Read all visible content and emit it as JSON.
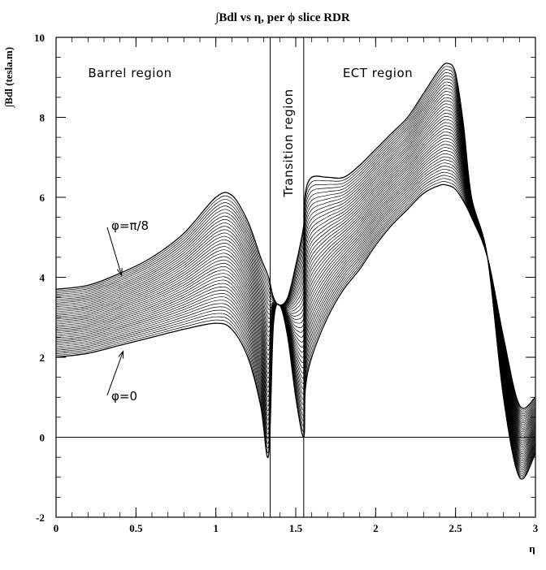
{
  "chart_data": {
    "type": "line",
    "title": "∫Bdl vs η, per ϕ slice RDR",
    "xlabel": "η",
    "ylabel": "∫Bdl (tesla.m)",
    "xlim": [
      0,
      3
    ],
    "ylim": [
      -2,
      10
    ],
    "xticks": [
      "0",
      "0.5",
      "1",
      "1.5",
      "2",
      "2.5",
      "3"
    ],
    "yticks": [
      "-2",
      "0",
      "2",
      "4",
      "6",
      "8",
      "10"
    ],
    "region_boundaries": [
      1.34,
      1.55
    ],
    "region_labels": [
      "Barrel region",
      "Transition region",
      "ECT region"
    ],
    "n_curves": 40,
    "x": [
      0,
      0.2,
      0.4,
      0.6,
      0.8,
      1.0,
      1.1,
      1.2,
      1.28,
      1.33,
      1.36,
      1.4,
      1.45,
      1.5,
      1.55,
      1.56,
      1.6,
      1.7,
      1.8,
      1.9,
      2.0,
      2.1,
      2.2,
      2.3,
      2.4,
      2.45,
      2.5,
      2.55,
      2.6,
      2.7,
      2.8,
      2.9,
      3.0
    ],
    "series": [
      {
        "name": "φ=π/8",
        "values": [
          3.7,
          3.8,
          4.1,
          4.5,
          5.1,
          6.0,
          6.05,
          5.4,
          4.5,
          4.0,
          3.5,
          3.3,
          3.5,
          4.3,
          5.3,
          6.1,
          6.5,
          6.5,
          6.5,
          6.8,
          7.2,
          7.6,
          8.0,
          8.6,
          9.2,
          9.35,
          9.1,
          7.8,
          6.0,
          4.5,
          1.0,
          -1.0,
          -0.4
        ]
      },
      {
        "name": "φ=0",
        "values": [
          2.0,
          2.1,
          2.3,
          2.5,
          2.7,
          2.85,
          2.7,
          2.0,
          0.8,
          -0.45,
          2.8,
          3.3,
          2.5,
          1.0,
          0.0,
          1.2,
          2.0,
          3.0,
          3.7,
          4.2,
          4.8,
          5.3,
          5.7,
          6.1,
          6.3,
          6.3,
          6.2,
          5.9,
          5.5,
          4.5,
          2.5,
          0.8,
          1.0
        ]
      }
    ],
    "annotations": [
      "φ=π/8",
      "φ=0"
    ]
  }
}
